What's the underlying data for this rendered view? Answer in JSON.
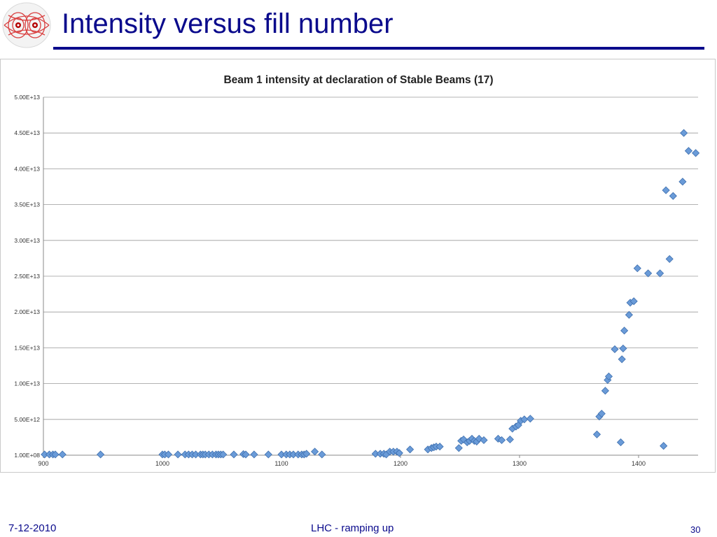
{
  "page": {
    "title": "Intensity versus fill number",
    "footer": {
      "date": "7-12-2010",
      "center": "LHC - ramping up",
      "page_number": "30"
    }
  },
  "colors": {
    "title": "#0a0a8c",
    "marker": "#6a9bd8",
    "marker_edge": "#3e6fae",
    "grid": "#9a9a9a"
  },
  "chart_data": {
    "type": "scatter",
    "title": "Beam 1 intensity at declaration of Stable Beams (17)",
    "xlabel": "",
    "ylabel": "",
    "xlim": [
      900,
      1450
    ],
    "ylim": [
      0,
      50000000000000
    ],
    "x_ticks": [
      {
        "value": 900,
        "label": "900"
      },
      {
        "value": 1000,
        "label": "1000"
      },
      {
        "value": 1100,
        "label": "1100"
      },
      {
        "value": 1200,
        "label": "1200"
      },
      {
        "value": 1300,
        "label": "1300"
      },
      {
        "value": 1400,
        "label": "1400"
      }
    ],
    "y_ticks": [
      {
        "value": 100000000,
        "label": "1.00E+08"
      },
      {
        "value": 5000000000000,
        "label": "5.00E+12"
      },
      {
        "value": 10000000000000,
        "label": "1.00E+13"
      },
      {
        "value": 15000000000000,
        "label": "1.50E+13"
      },
      {
        "value": 20000000000000,
        "label": "2.00E+13"
      },
      {
        "value": 25000000000000,
        "label": "2.50E+13"
      },
      {
        "value": 30000000000000,
        "label": "3.00E+13"
      },
      {
        "value": 35000000000000,
        "label": "3.50E+13"
      },
      {
        "value": 40000000000000,
        "label": "4.00E+13"
      },
      {
        "value": 45000000000000,
        "label": "4.50E+13"
      },
      {
        "value": 50000000000000,
        "label": "5.00E+13"
      }
    ],
    "grid": true,
    "marker": "diamond",
    "points": [
      [
        901,
        100000000000.0
      ],
      [
        905,
        100000000000.0
      ],
      [
        908,
        100000000000.0
      ],
      [
        910,
        100000000000.0
      ],
      [
        916,
        100000000000.0
      ],
      [
        948,
        100000000000.0
      ],
      [
        1000,
        100000000000.0
      ],
      [
        1002,
        100000000000.0
      ],
      [
        1005,
        100000000000.0
      ],
      [
        1013,
        100000000000.0
      ],
      [
        1019,
        100000000000.0
      ],
      [
        1022,
        100000000000.0
      ],
      [
        1025,
        100000000000.0
      ],
      [
        1028,
        100000000000.0
      ],
      [
        1032,
        100000000000.0
      ],
      [
        1034,
        100000000000.0
      ],
      [
        1036,
        100000000000.0
      ],
      [
        1039,
        100000000000.0
      ],
      [
        1042,
        100000000000.0
      ],
      [
        1045,
        100000000000.0
      ],
      [
        1047,
        100000000000.0
      ],
      [
        1049,
        100000000000.0
      ],
      [
        1051,
        100000000000.0
      ],
      [
        1060,
        100000000000.0
      ],
      [
        1068,
        150000000000.0
      ],
      [
        1070,
        100000000000.0
      ],
      [
        1077,
        100000000000.0
      ],
      [
        1089,
        100000000000.0
      ],
      [
        1100,
        100000000000.0
      ],
      [
        1104,
        100000000000.0
      ],
      [
        1107,
        100000000000.0
      ],
      [
        1110,
        100000000000.0
      ],
      [
        1114,
        100000000000.0
      ],
      [
        1117,
        100000000000.0
      ],
      [
        1119,
        100000000000.0
      ],
      [
        1121,
        200000000000.0
      ],
      [
        1128,
        500000000000.0
      ],
      [
        1134,
        100000000000.0
      ],
      [
        1179,
        200000000000.0
      ],
      [
        1183,
        200000000000.0
      ],
      [
        1186,
        200000000000.0
      ],
      [
        1188,
        100000000000.0
      ],
      [
        1191,
        500000000000.0
      ],
      [
        1194,
        500000000000.0
      ],
      [
        1197,
        500000000000.0
      ],
      [
        1199,
        300000000000.0
      ],
      [
        1208,
        800000000000.0
      ],
      [
        1223,
        800000000000.0
      ],
      [
        1226,
        1000000000000.0
      ],
      [
        1228,
        1100000000000.0
      ],
      [
        1230,
        1200000000000.0
      ],
      [
        1233,
        1200000000000.0
      ],
      [
        1249,
        1000000000000.0
      ],
      [
        1251,
        2000000000000.0
      ],
      [
        1253,
        2200000000000.0
      ],
      [
        1256,
        1800000000000.0
      ],
      [
        1258,
        2000000000000.0
      ],
      [
        1260,
        2300000000000.0
      ],
      [
        1262,
        2000000000000.0
      ],
      [
        1264,
        1900000000000.0
      ],
      [
        1266,
        2300000000000.0
      ],
      [
        1270,
        2100000000000.0
      ],
      [
        1282,
        2300000000000.0
      ],
      [
        1285,
        2100000000000.0
      ],
      [
        1292,
        2200000000000.0
      ],
      [
        1294,
        3700000000000.0
      ],
      [
        1297,
        4000000000000.0
      ],
      [
        1299,
        4200000000000.0
      ],
      [
        1301,
        4800000000000.0
      ],
      [
        1304,
        5000000000000.0
      ],
      [
        1309,
        5100000000000.0
      ],
      [
        1365,
        2900000000000.0
      ],
      [
        1367,
        5400000000000.0
      ],
      [
        1369,
        5800000000000.0
      ],
      [
        1372,
        9000000000000.0
      ],
      [
        1374,
        10500000000000.0
      ],
      [
        1375,
        11000000000000.0
      ],
      [
        1380,
        14800000000000.0
      ],
      [
        1385,
        1800000000000.0
      ],
      [
        1386,
        13400000000000.0
      ],
      [
        1387,
        14900000000000.0
      ],
      [
        1388,
        17400000000000.0
      ],
      [
        1392,
        19600000000000.0
      ],
      [
        1393,
        21300000000000.0
      ],
      [
        1396,
        21500000000000.0
      ],
      [
        1399,
        26100000000000.0
      ],
      [
        1408,
        25400000000000.0
      ],
      [
        1418,
        25400000000000.0
      ],
      [
        1421,
        1300000000000.0
      ],
      [
        1423,
        37000000000000.0
      ],
      [
        1426,
        27400000000000.0
      ],
      [
        1429,
        36200000000000.0
      ],
      [
        1437,
        38200000000000.0
      ],
      [
        1438,
        45000000000000.0
      ],
      [
        1442,
        42500000000000.0
      ],
      [
        1448,
        42200000000000.0
      ]
    ]
  }
}
